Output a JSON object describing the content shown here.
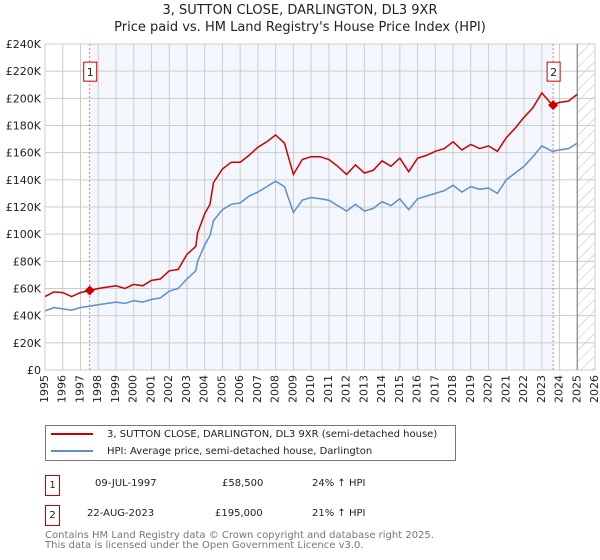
{
  "chart_data": {
    "type": "line",
    "title": "3, SUTTON CLOSE, DARLINGTON, DL3 9XR",
    "subtitle": "Price paid vs. HM Land Registry's House Price Index (HPI)",
    "xlabel": "",
    "ylabel": "",
    "xlim": [
      1995,
      2026
    ],
    "ylim": [
      0,
      240000
    ],
    "x_ticks": [
      "1995",
      "1996",
      "1997",
      "1998",
      "1999",
      "2000",
      "2001",
      "2002",
      "2003",
      "2004",
      "2005",
      "2006",
      "2007",
      "2008",
      "2009",
      "2010",
      "2011",
      "2012",
      "2013",
      "2014",
      "2015",
      "2016",
      "2017",
      "2018",
      "2019",
      "2020",
      "2021",
      "2022",
      "2023",
      "2024",
      "2025",
      "2026"
    ],
    "y_ticks": [
      {
        "v": 0,
        "label": "£0"
      },
      {
        "v": 20000,
        "label": "£20K"
      },
      {
        "v": 40000,
        "label": "£40K"
      },
      {
        "v": 60000,
        "label": "£60K"
      },
      {
        "v": 80000,
        "label": "£80K"
      },
      {
        "v": 100000,
        "label": "£100K"
      },
      {
        "v": 120000,
        "label": "£120K"
      },
      {
        "v": 140000,
        "label": "£140K"
      },
      {
        "v": 160000,
        "label": "£160K"
      },
      {
        "v": 180000,
        "label": "£180K"
      },
      {
        "v": 200000,
        "label": "£200K"
      },
      {
        "v": 220000,
        "label": "£220K"
      },
      {
        "v": 240000,
        "label": "£240K"
      }
    ],
    "grid": true,
    "legend_placement": "below",
    "shaded_span": [
      1997.52,
      2023.64
    ],
    "forecast_hatch_from": 2025.0,
    "x": [
      1995,
      1995.5,
      1996,
      1996.5,
      1997,
      1997.5,
      1998,
      1999,
      1999.5,
      2000,
      2000.5,
      2001,
      2001.5,
      2002,
      2002.5,
      2003,
      2003.5,
      2003.6,
      2004,
      2004.3,
      2004.5,
      2005,
      2005.5,
      2006,
      2006.5,
      2007,
      2007.5,
      2008,
      2008.5,
      2009,
      2009.5,
      2010,
      2010.5,
      2011,
      2011.5,
      2012,
      2012.5,
      2013,
      2013.5,
      2014,
      2014.5,
      2015,
      2015.5,
      2016,
      2016.5,
      2017,
      2017.5,
      2018,
      2018.5,
      2019,
      2019.5,
      2020,
      2020.5,
      2021,
      2021.5,
      2022,
      2022.5,
      2023,
      2023.6,
      2024,
      2024.5,
      2025
    ],
    "series": [
      {
        "name": "3, SUTTON CLOSE, DARLINGTON, DL3 9XR (semi-detached house)",
        "color": "#cc0000",
        "values": [
          54000,
          57500,
          57000,
          54000,
          57000,
          58500,
          60000,
          62000,
          60000,
          63000,
          62000,
          66000,
          67000,
          73000,
          74000,
          85000,
          91000,
          101000,
          115000,
          122000,
          138000,
          148000,
          153000,
          153000,
          158000,
          164000,
          168000,
          173000,
          167000,
          144000,
          155000,
          157000,
          157000,
          155000,
          150000,
          144000,
          151000,
          145000,
          147000,
          154000,
          150000,
          156000,
          146000,
          156000,
          158000,
          161000,
          163000,
          168000,
          162000,
          166000,
          163000,
          165000,
          161000,
          171000,
          178000,
          186000,
          193000,
          204000,
          195000,
          197000,
          198000,
          203000
        ]
      },
      {
        "name": "HPI: Average price, semi-detached house, Darlington",
        "color": "#5b8fd0",
        "values": [
          43500,
          46000,
          45000,
          44000,
          46000,
          47000,
          48000,
          50000,
          49000,
          51000,
          50000,
          52000,
          53000,
          58000,
          60000,
          67000,
          73000,
          80000,
          92000,
          99000,
          110000,
          118000,
          122000,
          123000,
          128000,
          131000,
          135000,
          139000,
          135000,
          116000,
          125000,
          127000,
          126000,
          125000,
          121000,
          117000,
          122000,
          117000,
          119000,
          124000,
          121000,
          126000,
          118000,
          126000,
          128000,
          130000,
          132000,
          136000,
          131000,
          135000,
          133000,
          134000,
          130000,
          140000,
          145000,
          150000,
          157000,
          165000,
          161000,
          162000,
          163000,
          167000
        ]
      }
    ],
    "annotations": [
      {
        "label": "1",
        "x": 1997.52,
        "value": 58500
      },
      {
        "label": "2",
        "x": 2023.64,
        "value": 195000
      }
    ]
  },
  "legend": {
    "property": "3, SUTTON CLOSE, DARLINGTON, DL3 9XR (semi-detached house)",
    "hpi": "HPI: Average price, semi-detached house, Darlington"
  },
  "sales": [
    {
      "num": "1",
      "date": "09-JUL-1997",
      "price": "£58,500",
      "delta": "24% ↑ HPI"
    },
    {
      "num": "2",
      "date": "22-AUG-2023",
      "price": "£195,000",
      "delta": "21% ↑ HPI"
    }
  ],
  "footer": {
    "line1": "Contains HM Land Registry data © Crown copyright and database right 2025.",
    "line2": "This data is licensed under the Open Government Licence v3.0."
  }
}
